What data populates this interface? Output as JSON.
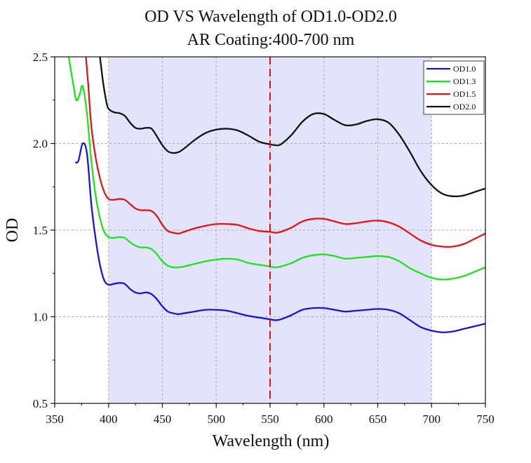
{
  "chart_data": {
    "type": "line",
    "title": "OD VS Wavelength of OD1.0-OD2.0",
    "subtitle": "AR Coating:400-700 nm",
    "xlabel": "Wavelength (nm)",
    "ylabel": "OD",
    "xlim": [
      350,
      750
    ],
    "ylim": [
      0.5,
      2.5
    ],
    "x_ticks": [
      "350",
      "400",
      "450",
      "500",
      "550",
      "600",
      "650",
      "700",
      "750"
    ],
    "y_ticks": [
      "0.5",
      "1.0",
      "1.5",
      "2.0",
      "2.5"
    ],
    "grid": true,
    "shaded_region": [
      400,
      700
    ],
    "shaded_color": "#e3e3fb",
    "reference_line_x": 550,
    "reference_line_color": "#dd1111",
    "legend_position": "top-right",
    "series": [
      {
        "name": "OD1.0",
        "color": "#1515d5",
        "x": [
          369,
          372,
          376,
          380,
          384,
          388,
          392,
          396,
          400,
          405,
          410,
          415,
          420,
          425,
          430,
          435,
          440,
          445,
          450,
          455,
          460,
          465,
          470,
          480,
          490,
          500,
          510,
          520,
          530,
          540,
          550,
          555,
          560,
          570,
          580,
          590,
          600,
          610,
          620,
          630,
          640,
          650,
          660,
          670,
          680,
          690,
          700,
          710,
          720,
          730,
          740,
          750
        ],
        "y": [
          1.89,
          1.9,
          2.0,
          1.94,
          1.65,
          1.45,
          1.3,
          1.21,
          1.185,
          1.19,
          1.195,
          1.19,
          1.16,
          1.14,
          1.135,
          1.14,
          1.13,
          1.1,
          1.06,
          1.03,
          1.02,
          1.015,
          1.02,
          1.03,
          1.04,
          1.04,
          1.035,
          1.02,
          1.005,
          0.995,
          0.985,
          0.98,
          0.985,
          1.01,
          1.04,
          1.05,
          1.05,
          1.04,
          1.03,
          1.035,
          1.04,
          1.045,
          1.04,
          1.02,
          0.98,
          0.94,
          0.92,
          0.91,
          0.915,
          0.93,
          0.945,
          0.96
        ]
      },
      {
        "name": "OD1.3",
        "color": "#1ae41a",
        "x": [
          363,
          367,
          370,
          373,
          376,
          380,
          384,
          388,
          392,
          396,
          400,
          405,
          410,
          415,
          420,
          425,
          430,
          435,
          440,
          445,
          450,
          455,
          460,
          465,
          470,
          480,
          490,
          500,
          510,
          520,
          530,
          540,
          550,
          555,
          560,
          570,
          580,
          590,
          600,
          610,
          620,
          630,
          640,
          650,
          660,
          670,
          680,
          690,
          700,
          710,
          720,
          730,
          740,
          750
        ],
        "y": [
          2.5,
          2.35,
          2.25,
          2.28,
          2.33,
          2.17,
          1.9,
          1.7,
          1.57,
          1.49,
          1.46,
          1.455,
          1.46,
          1.455,
          1.43,
          1.41,
          1.4,
          1.4,
          1.39,
          1.36,
          1.32,
          1.295,
          1.285,
          1.285,
          1.29,
          1.305,
          1.32,
          1.33,
          1.335,
          1.33,
          1.31,
          1.3,
          1.29,
          1.285,
          1.29,
          1.31,
          1.34,
          1.355,
          1.36,
          1.35,
          1.335,
          1.34,
          1.345,
          1.35,
          1.345,
          1.32,
          1.28,
          1.25,
          1.225,
          1.215,
          1.22,
          1.235,
          1.26,
          1.285
        ]
      },
      {
        "name": "OD1.5",
        "color": "#e01515",
        "x": [
          379,
          381,
          384,
          388,
          392,
          396,
          400,
          405,
          410,
          415,
          420,
          425,
          430,
          435,
          440,
          445,
          450,
          455,
          460,
          465,
          470,
          480,
          490,
          500,
          510,
          520,
          530,
          540,
          550,
          555,
          560,
          570,
          580,
          590,
          600,
          610,
          620,
          630,
          640,
          650,
          660,
          670,
          680,
          690,
          700,
          710,
          720,
          730,
          740,
          750
        ],
        "y": [
          2.5,
          2.35,
          2.1,
          1.92,
          1.8,
          1.72,
          1.68,
          1.675,
          1.68,
          1.675,
          1.65,
          1.625,
          1.615,
          1.615,
          1.61,
          1.58,
          1.53,
          1.495,
          1.485,
          1.48,
          1.49,
          1.51,
          1.525,
          1.535,
          1.535,
          1.53,
          1.51,
          1.495,
          1.49,
          1.485,
          1.49,
          1.515,
          1.55,
          1.565,
          1.565,
          1.55,
          1.535,
          1.54,
          1.55,
          1.555,
          1.545,
          1.52,
          1.48,
          1.44,
          1.415,
          1.405,
          1.405,
          1.42,
          1.45,
          1.48
        ]
      },
      {
        "name": "OD2.0",
        "color": "#111111",
        "x": [
          392,
          395,
          398,
          400,
          405,
          410,
          415,
          420,
          425,
          430,
          435,
          440,
          445,
          450,
          455,
          460,
          465,
          470,
          480,
          490,
          500,
          510,
          520,
          530,
          540,
          550,
          555,
          560,
          570,
          580,
          590,
          600,
          610,
          620,
          630,
          640,
          650,
          660,
          670,
          680,
          690,
          700,
          710,
          720,
          730,
          740,
          750
        ],
        "y": [
          2.5,
          2.35,
          2.24,
          2.2,
          2.18,
          2.175,
          2.16,
          2.12,
          2.09,
          2.085,
          2.09,
          2.085,
          2.04,
          1.99,
          1.955,
          1.945,
          1.95,
          1.97,
          2.02,
          2.06,
          2.08,
          2.085,
          2.075,
          2.045,
          2.01,
          1.995,
          1.99,
          1.995,
          2.05,
          2.125,
          2.17,
          2.17,
          2.135,
          2.105,
          2.11,
          2.13,
          2.14,
          2.12,
          2.05,
          1.95,
          1.84,
          1.76,
          1.71,
          1.695,
          1.7,
          1.72,
          1.74
        ]
      }
    ]
  }
}
